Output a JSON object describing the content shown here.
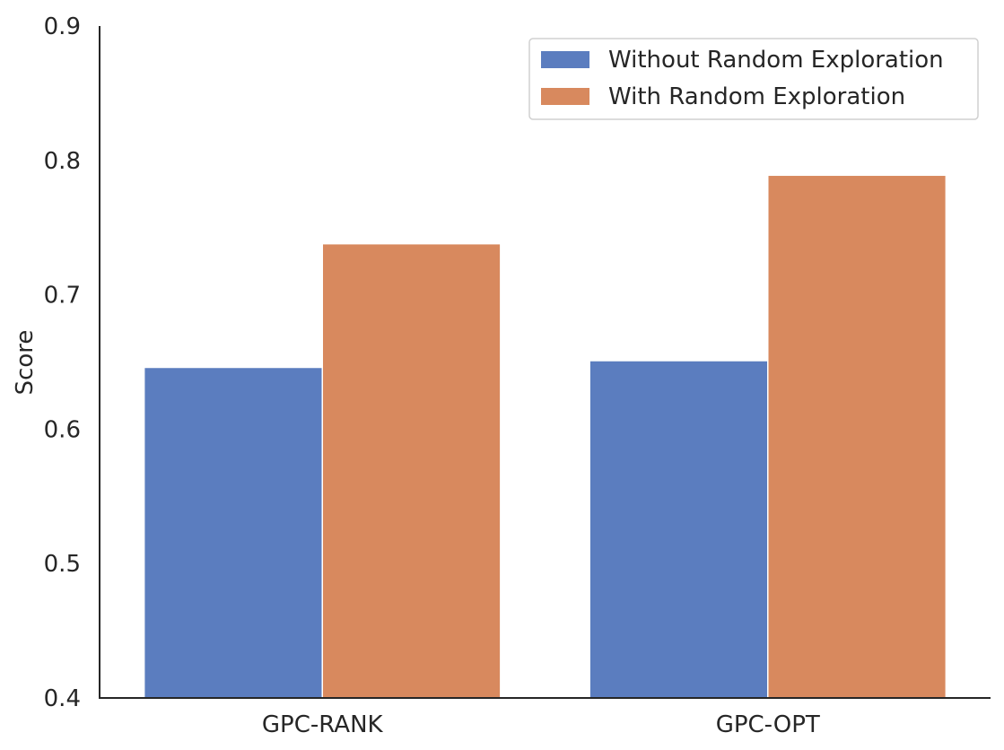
{
  "chart_data": {
    "type": "bar",
    "title": "",
    "xlabel": "",
    "ylabel": "Score",
    "categories": [
      "GPC-RANK",
      "GPC-OPT"
    ],
    "series": [
      {
        "name": "Without Random Exploration",
        "color": "#5b7dbf",
        "values": [
          0.646,
          0.651
        ]
      },
      {
        "name": "With Random Exploration",
        "color": "#d8895e",
        "values": [
          0.738,
          0.789
        ]
      }
    ],
    "ylim": [
      0.4,
      0.9
    ],
    "yticks": [
      "0.4",
      "0.5",
      "0.6",
      "0.7",
      "0.8",
      "0.9"
    ],
    "grid": false,
    "legend_position": "top-right"
  }
}
